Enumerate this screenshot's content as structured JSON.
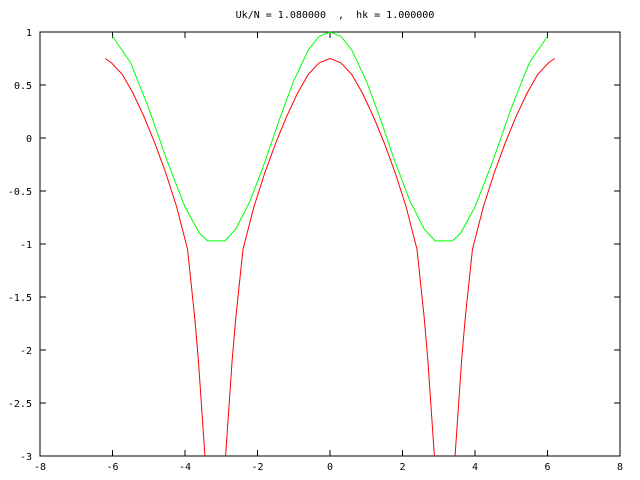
{
  "chart_data": {
    "type": "line",
    "title": "Uk/N = 1.080000  ,  hk = 1.000000",
    "xlim": [
      -8,
      8
    ],
    "xticks": [
      -8,
      -6,
      -4,
      -2,
      0,
      2,
      4,
      6,
      8
    ],
    "ylim": [
      -3,
      1
    ],
    "yticks": [
      1,
      0.5,
      0,
      -0.5,
      -1,
      -1.5,
      -2,
      -2.5,
      -3
    ],
    "grid": false,
    "series": [
      {
        "color": "#ff0000",
        "x": [
          -6.2,
          -6.03,
          -5.73,
          -5.43,
          -5.13,
          -4.83,
          -4.53,
          -4.23,
          -3.93,
          -3.73,
          -3.63,
          -3.53,
          -3.45,
          -3.17,
          -2.88,
          -2.8,
          -2.7,
          -2.6,
          -2.4,
          -2.1,
          -1.8,
          -1.5,
          -1.2,
          -0.9,
          -0.6,
          -0.3,
          0,
          0.3,
          0.6,
          0.9,
          1.2,
          1.5,
          1.8,
          2.1,
          2.4,
          2.6,
          2.7,
          2.8,
          2.88,
          3.17,
          3.45,
          3.53,
          3.63,
          3.73,
          3.93,
          4.23,
          4.53,
          4.83,
          5.13,
          5.43,
          5.73,
          6.03,
          6.2
        ],
        "values": [
          0.75,
          0.71,
          0.6,
          0.42,
          0.2,
          -0.05,
          -0.33,
          -0.65,
          -1.05,
          -1.7,
          -2.1,
          -2.6,
          -3,
          null,
          -3,
          -2.6,
          -2.1,
          -1.7,
          -1.05,
          -0.65,
          -0.33,
          -0.05,
          0.2,
          0.42,
          0.6,
          0.71,
          0.75,
          0.71,
          0.6,
          0.42,
          0.2,
          -0.05,
          -0.33,
          -0.65,
          -1.05,
          -1.7,
          -2.1,
          -2.6,
          -3,
          null,
          -3,
          -2.6,
          -2.1,
          -1.7,
          -1.05,
          -0.65,
          -0.33,
          -0.05,
          0.2,
          0.42,
          0.6,
          0.71,
          0.75
        ]
      },
      {
        "color": "#00ff00",
        "x": [
          -6.0,
          -5.5,
          -5.0,
          -4.5,
          -4.0,
          -3.6,
          -3.38,
          -2.9,
          -2.6,
          -2.2,
          -1.8,
          -1.4,
          -1.0,
          -0.6,
          -0.3,
          0,
          0.3,
          0.6,
          1.0,
          1.4,
          1.8,
          2.2,
          2.6,
          2.9,
          3.38,
          3.6,
          4.0,
          4.5,
          5.0,
          5.5,
          6.0
        ],
        "values": [
          0.96,
          0.71,
          0.28,
          -0.21,
          -0.65,
          -0.9,
          -0.97,
          -0.97,
          -0.86,
          -0.59,
          -0.23,
          0.17,
          0.54,
          0.83,
          0.96,
          1,
          0.96,
          0.83,
          0.54,
          0.17,
          -0.23,
          -0.59,
          -0.86,
          -0.97,
          -0.97,
          -0.9,
          -0.65,
          -0.21,
          0.28,
          0.71,
          0.96
        ]
      }
    ]
  }
}
